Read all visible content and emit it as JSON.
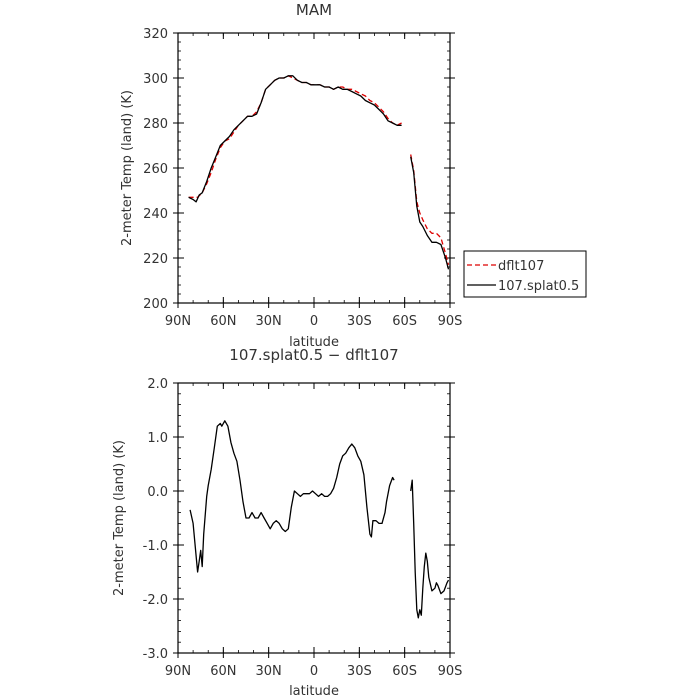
{
  "chart_data": [
    {
      "type": "line",
      "title": "MAM",
      "xlabel": "latitude",
      "ylabel": "2-meter Temp (land) (K)",
      "x_ticklabels": [
        "90N",
        "60N",
        "30N",
        "0",
        "30S",
        "60S",
        "90S"
      ],
      "x_tickvalues": [
        90,
        60,
        30,
        0,
        -30,
        -60,
        -90
      ],
      "xlim": [
        90,
        -90
      ],
      "ylim": [
        200,
        320
      ],
      "y_ticklabels": [
        "200",
        "220",
        "240",
        "260",
        "280",
        "300",
        "320"
      ],
      "y_tickvalues": [
        200,
        220,
        240,
        260,
        280,
        300,
        320
      ],
      "legend_placement": "right",
      "series": [
        {
          "name": "dflt107",
          "color": "#dd0000",
          "dash": "dashed",
          "segments": [
            [
              [
                83,
                247
              ],
              [
                80,
                247
              ],
              [
                77,
                247
              ],
              [
                74,
                249
              ],
              [
                71,
                253
              ],
              [
                68,
                258
              ],
              [
                65,
                264
              ],
              [
                62,
                269
              ],
              [
                59,
                272
              ],
              [
                56,
                273
              ],
              [
                53,
                276
              ],
              [
                50,
                279
              ],
              [
                47,
                281
              ],
              [
                44,
                283
              ],
              [
                41,
                283
              ],
              [
                38,
                285
              ],
              [
                35,
                289
              ],
              [
                32,
                295
              ],
              [
                29,
                297
              ],
              [
                26,
                299
              ],
              [
                23,
                300
              ],
              [
                20,
                300
              ],
              [
                17,
                301
              ],
              [
                14,
                300
              ],
              [
                11,
                299
              ],
              [
                8,
                298
              ],
              [
                5,
                298
              ],
              [
                2,
                297
              ],
              [
                -1,
                297
              ],
              [
                -4,
                297
              ],
              [
                -7,
                296
              ],
              [
                -10,
                296
              ],
              [
                -13,
                295
              ],
              [
                -16,
                296
              ],
              [
                -19,
                296
              ],
              [
                -22,
                295
              ],
              [
                -25,
                295
              ],
              [
                -28,
                294
              ],
              [
                -31,
                293
              ],
              [
                -34,
                292
              ],
              [
                -37,
                290
              ],
              [
                -40,
                289
              ],
              [
                -43,
                287
              ],
              [
                -46,
                285
              ],
              [
                -49,
                282
              ],
              [
                -52,
                280
              ],
              [
                -55,
                279
              ],
              [
                -58,
                280
              ]
            ],
            [
              [
                -64,
                266
              ],
              [
                -66,
                259
              ],
              [
                -68,
                245
              ],
              [
                -70,
                240
              ],
              [
                -72,
                237
              ],
              [
                -75,
                233
              ],
              [
                -78,
                231
              ],
              [
                -81,
                231
              ],
              [
                -84,
                229
              ],
              [
                -87,
                222
              ],
              [
                -89,
                217
              ]
            ]
          ]
        },
        {
          "name": "107.splat0.5",
          "color": "#000000",
          "dash": "solid",
          "segments": [
            [
              [
                83,
                247
              ],
              [
                80,
                246
              ],
              [
                78,
                245
              ],
              [
                76,
                248
              ],
              [
                74,
                249
              ],
              [
                71,
                254
              ],
              [
                68,
                260
              ],
              [
                65,
                265
              ],
              [
                62,
                270
              ],
              [
                59,
                272
              ],
              [
                56,
                274
              ],
              [
                53,
                277
              ],
              [
                50,
                279
              ],
              [
                47,
                281
              ],
              [
                44,
                283
              ],
              [
                41,
                283
              ],
              [
                38,
                284
              ],
              [
                35,
                289
              ],
              [
                32,
                295
              ],
              [
                29,
                297
              ],
              [
                26,
                299
              ],
              [
                23,
                300
              ],
              [
                20,
                300
              ],
              [
                17,
                301
              ],
              [
                14,
                301
              ],
              [
                11,
                299
              ],
              [
                8,
                298
              ],
              [
                5,
                298
              ],
              [
                2,
                297
              ],
              [
                -1,
                297
              ],
              [
                -4,
                297
              ],
              [
                -7,
                296
              ],
              [
                -10,
                296
              ],
              [
                -13,
                295
              ],
              [
                -16,
                296
              ],
              [
                -19,
                295
              ],
              [
                -22,
                295
              ],
              [
                -25,
                294
              ],
              [
                -28,
                293
              ],
              [
                -31,
                292
              ],
              [
                -34,
                290
              ],
              [
                -37,
                289
              ],
              [
                -40,
                288
              ],
              [
                -43,
                286
              ],
              [
                -46,
                284
              ],
              [
                -49,
                281
              ],
              [
                -52,
                280
              ],
              [
                -55,
                279
              ],
              [
                -58,
                279
              ]
            ],
            [
              [
                -64,
                265
              ],
              [
                -66,
                258
              ],
              [
                -68,
                243
              ],
              [
                -70,
                236
              ],
              [
                -72,
                234
              ],
              [
                -75,
                230
              ],
              [
                -78,
                227
              ],
              [
                -81,
                227
              ],
              [
                -84,
                226
              ],
              [
                -87,
                220
              ],
              [
                -89,
                215
              ]
            ]
          ]
        }
      ]
    },
    {
      "type": "line",
      "title": "107.splat0.5 − dflt107",
      "xlabel": "latitude",
      "ylabel": "2-meter Temp (land) (K)",
      "x_ticklabels": [
        "90N",
        "60N",
        "30N",
        "0",
        "30S",
        "60S",
        "90S"
      ],
      "x_tickvalues": [
        90,
        60,
        30,
        0,
        -30,
        -60,
        -90
      ],
      "xlim": [
        90,
        -90
      ],
      "ylim": [
        -3.0,
        2.0
      ],
      "y_ticklabels": [
        "-3.0",
        "-2.0",
        "-1.0",
        "0.0",
        "1.0",
        "2.0"
      ],
      "y_tickvalues": [
        -3.0,
        -2.0,
        -1.0,
        0.0,
        1.0,
        2.0
      ],
      "series": [
        {
          "color": "#000000",
          "dash": "solid",
          "segments": [
            [
              [
                82,
                -0.35
              ],
              [
                80,
                -0.6
              ],
              [
                78,
                -1.2
              ],
              [
                77,
                -1.5
              ],
              [
                76,
                -1.3
              ],
              [
                75,
                -1.1
              ],
              [
                74,
                -1.4
              ],
              [
                73,
                -0.8
              ],
              [
                71,
                -0.1
              ],
              [
                70,
                0.1
              ],
              [
                68,
                0.4
              ],
              [
                66,
                0.8
              ],
              [
                64,
                1.2
              ],
              [
                62,
                1.25
              ],
              [
                61,
                1.2
              ],
              [
                59,
                1.3
              ],
              [
                57,
                1.2
              ],
              [
                55,
                0.9
              ],
              [
                53,
                0.7
              ],
              [
                51,
                0.55
              ],
              [
                49,
                0.2
              ],
              [
                47,
                -0.2
              ],
              [
                45,
                -0.5
              ],
              [
                43,
                -0.5
              ],
              [
                41,
                -0.4
              ],
              [
                39,
                -0.5
              ],
              [
                37,
                -0.5
              ],
              [
                35,
                -0.4
              ],
              [
                33,
                -0.5
              ],
              [
                31,
                -0.6
              ],
              [
                29,
                -0.7
              ],
              [
                27,
                -0.6
              ],
              [
                25,
                -0.55
              ],
              [
                23,
                -0.6
              ],
              [
                21,
                -0.7
              ],
              [
                19,
                -0.75
              ],
              [
                17,
                -0.7
              ],
              [
                15,
                -0.3
              ],
              [
                13,
                0.0
              ],
              [
                11,
                -0.05
              ],
              [
                9,
                -0.1
              ],
              [
                7,
                -0.05
              ],
              [
                5,
                -0.05
              ],
              [
                3,
                -0.05
              ],
              [
                1,
                0.0
              ],
              [
                -1,
                -0.05
              ],
              [
                -3,
                -0.1
              ],
              [
                -5,
                -0.05
              ],
              [
                -7,
                -0.1
              ],
              [
                -9,
                -0.1
              ],
              [
                -11,
                -0.05
              ],
              [
                -13,
                0.05
              ],
              [
                -15,
                0.25
              ],
              [
                -17,
                0.5
              ],
              [
                -19,
                0.65
              ],
              [
                -21,
                0.7
              ],
              [
                -23,
                0.8
              ],
              [
                -25,
                0.87
              ],
              [
                -27,
                0.8
              ],
              [
                -29,
                0.65
              ],
              [
                -31,
                0.55
              ],
              [
                -33,
                0.3
              ],
              [
                -35,
                -0.3
              ],
              [
                -37,
                -0.8
              ],
              [
                -38,
                -0.85
              ],
              [
                -39,
                -0.55
              ],
              [
                -41,
                -0.55
              ],
              [
                -43,
                -0.6
              ],
              [
                -45,
                -0.6
              ],
              [
                -47,
                -0.4
              ],
              [
                -48,
                -0.2
              ],
              [
                -50,
                0.1
              ],
              [
                -52,
                0.25
              ],
              [
                -53,
                0.2
              ]
            ],
            [
              [
                -64,
                0.0
              ],
              [
                -65,
                0.2
              ],
              [
                -66,
                -0.6
              ],
              [
                -67,
                -1.5
              ],
              [
                -68,
                -2.2
              ],
              [
                -69,
                -2.35
              ],
              [
                -70,
                -2.2
              ],
              [
                -71,
                -2.3
              ],
              [
                -72,
                -1.8
              ],
              [
                -73,
                -1.4
              ],
              [
                -74,
                -1.15
              ],
              [
                -75,
                -1.3
              ],
              [
                -76,
                -1.6
              ],
              [
                -78,
                -1.85
              ],
              [
                -80,
                -1.8
              ],
              [
                -81,
                -1.7
              ],
              [
                -82,
                -1.75
              ],
              [
                -84,
                -1.9
              ],
              [
                -86,
                -1.85
              ],
              [
                -88,
                -1.7
              ],
              [
                -89,
                -1.65
              ]
            ]
          ]
        }
      ]
    }
  ]
}
